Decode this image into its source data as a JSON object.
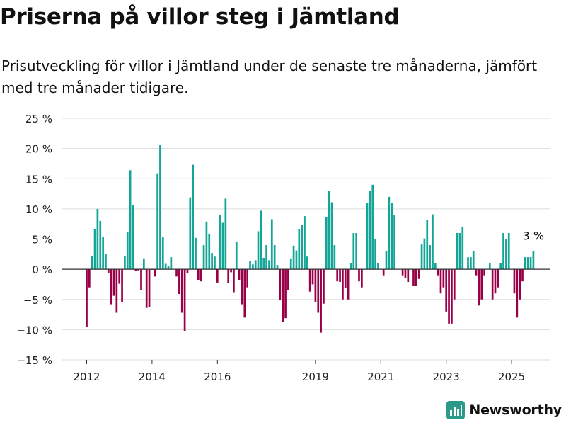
{
  "header": {
    "title": "Priserna på villor steg i Jämtland",
    "subtitle": "Prisutveckling för villor i Jämtland under de senaste tre månaderna, jämfört med tre månader tidigare."
  },
  "brand": {
    "name": "Newsworthy",
    "icon": "bar-chart-logo-icon",
    "color": "#2a9a8a"
  },
  "colors": {
    "positive": "#13a596",
    "negative": "#990047",
    "grid": "#dddddd",
    "axis": "#333333"
  },
  "chart_data": {
    "type": "bar",
    "ylim": [
      -15,
      25
    ],
    "y_ticks": [
      -15,
      -10,
      -5,
      0,
      5,
      10,
      15,
      20,
      25
    ],
    "y_tick_labels": [
      "−15 %",
      "−10 %",
      "−5 %",
      "0 %",
      "5 %",
      "10 %",
      "15 %",
      "20 %",
      "25 %"
    ],
    "x_ticks": [
      "2012",
      "2014",
      "2016",
      "2019",
      "2021",
      "2023",
      "2025"
    ],
    "xlabel": "",
    "ylabel": "",
    "grid": true,
    "annotation": {
      "text": "3 %",
      "applies_to": "last"
    },
    "series": [
      {
        "start": "2012-01",
        "values": [
          -9.5,
          -3,
          2.2,
          6.7,
          10,
          8,
          5.4,
          2.5,
          -0.6,
          -5.8,
          -4.4,
          -7.2,
          -2.4,
          -5.5,
          2.2,
          6.2,
          16.4,
          10.6,
          -0.3,
          -0.2,
          -3.5,
          1.8,
          -6.4,
          -6.2,
          -0.1,
          -1.2,
          15.9,
          20.6,
          5.4,
          0.9,
          0.5,
          2,
          0,
          -1.2,
          -4.1,
          -7.2,
          -10.2,
          -0.6,
          11.9,
          17.3,
          5.2,
          -1.8,
          -2,
          4,
          7.9,
          5.9,
          2.7,
          2.1,
          -2.2,
          9,
          7.7,
          11.7,
          -2.3,
          -0.5,
          -3.8,
          4.6,
          -1.8,
          -5.8,
          -8,
          -3,
          1.4,
          0.8,
          1.5,
          6.3,
          9.7,
          1.9,
          4,
          1.5,
          8.3,
          4,
          0.7,
          -5.1,
          -8.7,
          -8.1,
          -3.4,
          1.8,
          3.9,
          3.1,
          6.7,
          7.3,
          8.8,
          2.1,
          -3.7,
          -2.5,
          -5.4,
          -7.2,
          -10.5,
          -5.7,
          8.7,
          13,
          11.1,
          4,
          -2,
          -2.1,
          -5,
          -3.1,
          -5,
          1,
          6,
          6,
          -2,
          -3,
          0,
          11,
          13,
          14,
          5,
          1,
          0,
          -1,
          3,
          12,
          11,
          9,
          0,
          0,
          -1,
          -1.4,
          -2.1,
          0,
          -2.8,
          -2.8,
          -1.6,
          4.1,
          5.1,
          8.2,
          4,
          9.1,
          1,
          -1,
          -4,
          -3,
          -7,
          -9,
          -9,
          -5,
          6,
          6,
          7,
          0,
          2,
          2,
          3,
          -1,
          -6,
          -5,
          -1,
          0,
          1,
          -5,
          -4,
          -3,
          1,
          6,
          5,
          6,
          0,
          -4,
          -8,
          -5,
          -2,
          2,
          2,
          2,
          3
        ]
      }
    ]
  }
}
